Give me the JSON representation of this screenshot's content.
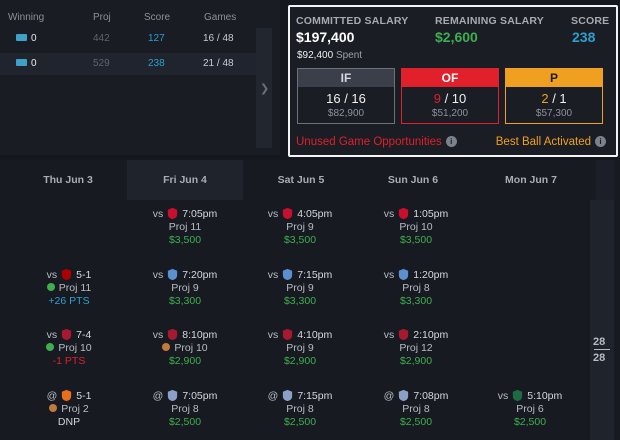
{
  "lineup_table": {
    "headers": [
      "Winning",
      "Proj",
      "Score",
      "Games"
    ],
    "rows": [
      {
        "winning": "0",
        "proj": "442",
        "score": "127",
        "games": "16 / 48"
      },
      {
        "winning": "0",
        "proj": "529",
        "score": "238",
        "games": "21 / 48"
      }
    ]
  },
  "salary": {
    "committed_label": "COMMITTED SALARY",
    "committed_value": "$197,400",
    "remaining_label": "REMAINING SALARY",
    "remaining_value": "$2,600",
    "score_label": "SCORE",
    "score_value": "238",
    "spent_amount": "$92,400",
    "spent_label": "Spent",
    "positions": [
      {
        "label": "IF",
        "filled": "16",
        "total": "16",
        "amount": "$82,900",
        "color": "#9ba1ab"
      },
      {
        "label": "OF",
        "filled": "9",
        "total": "10",
        "amount": "$51,200",
        "color": "#e0202a"
      },
      {
        "label": "P",
        "filled": "2",
        "total": "1",
        "amount": "$57,300",
        "color": "#f0a020"
      }
    ],
    "unused_text": "Unused Game Opportunities",
    "best_ball_text": "Best Ball Activated"
  },
  "schedule": {
    "days": [
      "Thu Jun 3",
      "Fri Jun 4",
      "Sat Jun 5",
      "Sun Jun 6",
      "Mon Jun 7"
    ],
    "games_count_top": "28",
    "games_count_bottom": "28",
    "games": [
      {
        "id": "fri-r1",
        "prefix": "vs",
        "team": "CLE",
        "time": "7:05pm",
        "proj": "Proj 11",
        "salary": "$3,500"
      },
      {
        "id": "sat-r1",
        "prefix": "vs",
        "team": "CLE",
        "time": "4:05pm",
        "proj": "Proj 9",
        "salary": "$3,500"
      },
      {
        "id": "sun-r1",
        "prefix": "vs",
        "team": "CLE",
        "time": "1:05pm",
        "proj": "Proj 10",
        "salary": "$3,500"
      },
      {
        "id": "thu-r2",
        "prefix": "vs",
        "team": "WSH",
        "time": "5-1",
        "proj": "Proj 11",
        "pts": "+26 PTS"
      },
      {
        "id": "fri-r2",
        "prefix": "vs",
        "team": "LAD",
        "time": "7:20pm",
        "proj": "Proj 9",
        "salary": "$3,300"
      },
      {
        "id": "sat-r2",
        "prefix": "vs",
        "team": "LAD",
        "time": "7:15pm",
        "proj": "Proj 9",
        "salary": "$3,300"
      },
      {
        "id": "sun-r2",
        "prefix": "vs",
        "team": "LAD",
        "time": "1:20pm",
        "proj": "Proj 8",
        "salary": "$3,300"
      },
      {
        "id": "thu-r3",
        "prefix": "vs",
        "team": "ARI",
        "time": "7-4",
        "proj": "Proj 10",
        "pts": "-1 PTS"
      },
      {
        "id": "fri-r3",
        "prefix": "vs",
        "team": "ARI",
        "time": "8:10pm",
        "proj": "Proj 10",
        "salary": "$2,900"
      },
      {
        "id": "sat-r3",
        "prefix": "vs",
        "team": "ARI",
        "time": "4:10pm",
        "proj": "Proj 9",
        "salary": "$2,900"
      },
      {
        "id": "sun-r3",
        "prefix": "vs",
        "team": "ARI",
        "time": "2:10pm",
        "proj": "Proj 12",
        "salary": "$2,900"
      },
      {
        "id": "thu-r4",
        "prefix": "@",
        "team": "HOU",
        "time": "5-1",
        "proj": "Proj 2",
        "dnp": "DNP"
      },
      {
        "id": "fri-r4",
        "prefix": "@",
        "team": "NYY",
        "time": "7:05pm",
        "proj": "Proj 8",
        "salary": "$2,500"
      },
      {
        "id": "sat-r4",
        "prefix": "@",
        "team": "NYY",
        "time": "7:15pm",
        "proj": "Proj 8",
        "salary": "$2,500"
      },
      {
        "id": "sun-r4",
        "prefix": "@",
        "team": "NYY",
        "time": "7:08pm",
        "proj": "Proj 8",
        "salary": "$2,500"
      },
      {
        "id": "mon-r4",
        "prefix": "vs",
        "team": "OAK",
        "time": "5:10pm",
        "proj": "Proj 6",
        "salary": "$2,500"
      }
    ]
  },
  "colors": {
    "green": "#3fae4f",
    "blue": "#2c9fd0",
    "red": "#e0202a",
    "orange": "#f0a020"
  }
}
